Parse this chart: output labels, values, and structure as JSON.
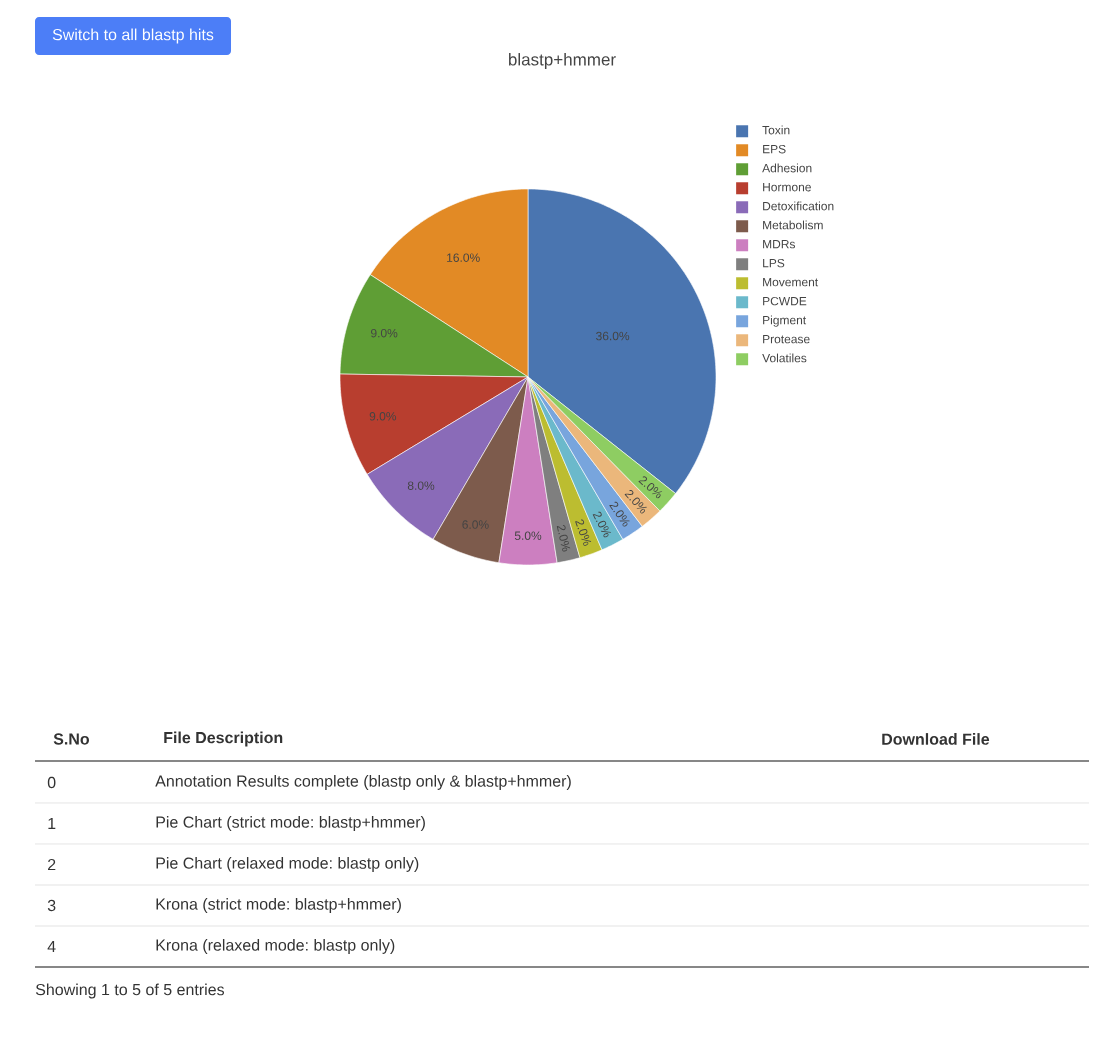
{
  "chart_data": {
    "type": "pie",
    "title": "blastp+hmmer",
    "categories": [
      "Toxin",
      "EPS",
      "Adhesion",
      "Hormone",
      "Detoxification",
      "Metabolism",
      "MDRs",
      "LPS",
      "Movement",
      "PCWDE",
      "Pigment",
      "Protease",
      "Volatiles"
    ],
    "values": [
      36,
      16,
      9,
      9,
      8,
      6,
      5,
      2,
      2,
      2,
      2,
      2,
      2
    ],
    "colors": [
      "#4a75b0",
      "#e28a25",
      "#5f9e35",
      "#b83e2f",
      "#8a6bb8",
      "#7d5b4c",
      "#cc7fc0",
      "#7f7f7f",
      "#bcbd30",
      "#6bb9cb",
      "#78a5dd",
      "#ebb77b",
      "#8ecd62"
    ],
    "value_labels": [
      "36.0%",
      "16.0%",
      "9.0%",
      "9.0%",
      "8.0%",
      "6.0%",
      "5.0%",
      "2.0%",
      "2.0%",
      "2.0%",
      "2.0%",
      "2.0%",
      "2.0%"
    ],
    "legend": "top right",
    "annotations": [
      "Switch to all blastp hits",
      "S.No",
      "File Description",
      "Download File",
      "0",
      "Annotation Results complete (blastp only & blastp+hmmer)",
      "1",
      "Pie Chart (strict mode: blastp+hmmer)",
      "2",
      "Pie Chart (relaxed mode: blastp only)",
      "3",
      "Krona (strict mode: blastp+hmmer)",
      "4",
      "Krona (relaxed mode: blastp only)",
      "Showing 1 to 5 of 5 entries"
    ]
  }
}
